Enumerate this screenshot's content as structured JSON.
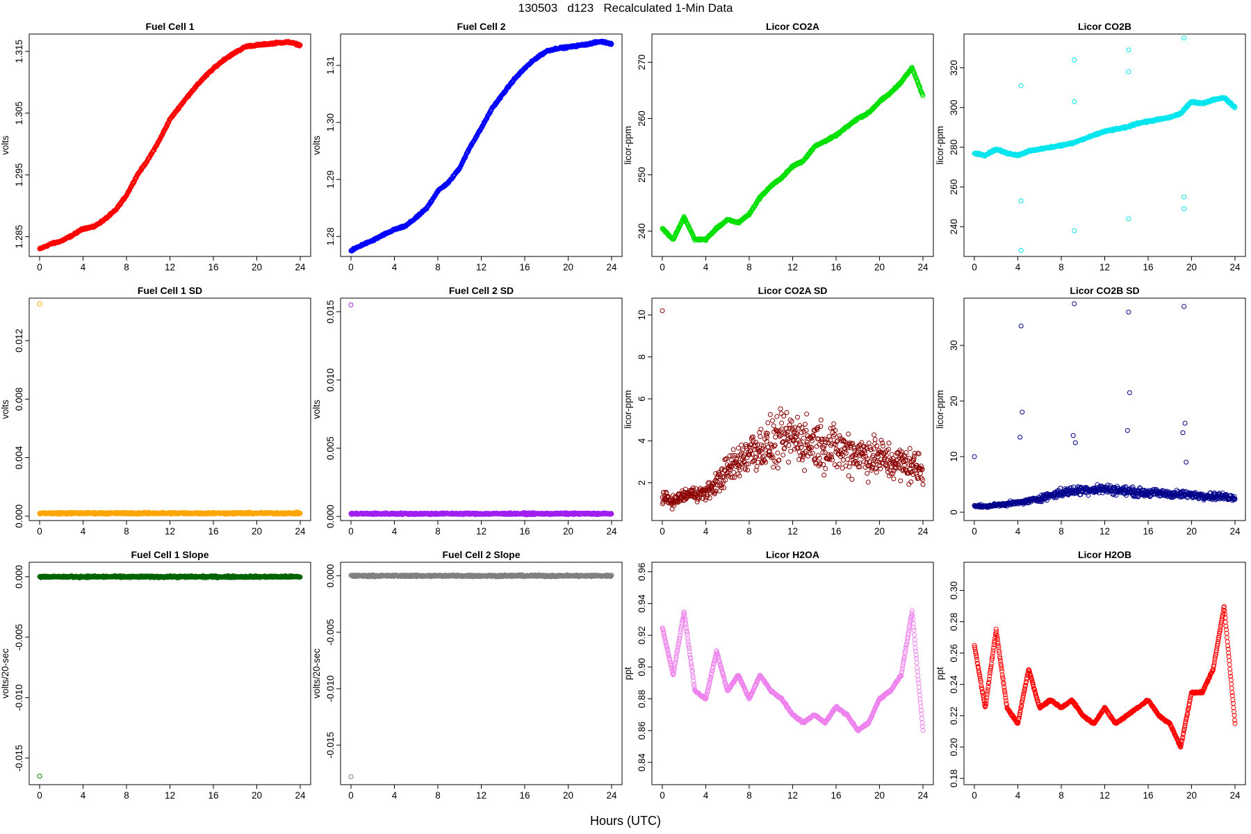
{
  "figure": {
    "title": "130503   d123   Recalculated 1-Min Data",
    "xlabel": "Hours (UTC)"
  },
  "chart_data": [
    {
      "type": "scatter",
      "title": "Fuel Cell 1",
      "ylabel": "volts",
      "color": "#ff0000",
      "xlim": [
        0,
        24
      ],
      "ylim": [
        1.2818,
        1.3178
      ],
      "xticks": [
        0,
        4,
        8,
        12,
        16,
        20,
        24
      ],
      "yticks": [
        1.285,
        1.295,
        1.305,
        1.315
      ],
      "ytick_labels": [
        "1.285",
        "1.295",
        "1.305",
        "1.315"
      ],
      "x": [
        0,
        1,
        2,
        3,
        4,
        5,
        6,
        7,
        8,
        9,
        10,
        11,
        12,
        13,
        14,
        15,
        16,
        17,
        18,
        19,
        20,
        21,
        22,
        23,
        24
      ],
      "values": [
        1.283,
        1.2838,
        1.2843,
        1.2852,
        1.2863,
        1.2866,
        1.2878,
        1.2893,
        1.2917,
        1.295,
        1.2975,
        1.3005,
        1.304,
        1.3063,
        1.3085,
        1.3105,
        1.3122,
        1.3137,
        1.3148,
        1.3158,
        1.316,
        1.3162,
        1.3164,
        1.3165,
        1.316
      ]
    },
    {
      "type": "scatter",
      "title": "Fuel Cell 2",
      "ylabel": "volts",
      "color": "#0000ff",
      "xlim": [
        0,
        24
      ],
      "ylim": [
        1.2765,
        1.3155
      ],
      "xticks": [
        0,
        4,
        8,
        12,
        16,
        20,
        24
      ],
      "yticks": [
        1.28,
        1.29,
        1.3,
        1.31
      ],
      "ytick_labels": [
        "1.28",
        "1.29",
        "1.30",
        "1.31"
      ],
      "x": [
        0,
        1,
        2,
        3,
        4,
        5,
        6,
        7,
        8,
        9,
        10,
        11,
        12,
        13,
        14,
        15,
        16,
        17,
        18,
        19,
        20,
        21,
        22,
        23,
        24
      ],
      "values": [
        1.2775,
        1.2785,
        1.2793,
        1.2803,
        1.2812,
        1.2818,
        1.2833,
        1.285,
        1.288,
        1.2895,
        1.292,
        1.2958,
        1.299,
        1.3025,
        1.305,
        1.3075,
        1.3095,
        1.3112,
        1.3125,
        1.313,
        1.3132,
        1.3135,
        1.3138,
        1.3142,
        1.3138
      ]
    },
    {
      "type": "scatter",
      "title": "Licor CO2A",
      "ylabel": "licor-ppm",
      "color": "#00e000",
      "xlim": [
        0,
        24
      ],
      "ylim": [
        235.5,
        275
      ],
      "xticks": [
        0,
        4,
        8,
        12,
        16,
        20,
        24
      ],
      "yticks": [
        240,
        250,
        260,
        270
      ],
      "ytick_labels": [
        "240",
        "250",
        "260",
        "270"
      ],
      "x": [
        0,
        1,
        2,
        3,
        4,
        5,
        6,
        7,
        8,
        9,
        10,
        11,
        12,
        13,
        14,
        15,
        16,
        17,
        18,
        19,
        20,
        21,
        22,
        23,
        24
      ],
      "values": [
        240.5,
        238.5,
        242.5,
        238.5,
        238.5,
        240.5,
        242.0,
        241.5,
        243.0,
        246.0,
        248.0,
        249.5,
        251.5,
        252.5,
        255.0,
        256.0,
        257.0,
        258.5,
        260.0,
        261.0,
        263.0,
        264.5,
        266.5,
        269.0,
        264.0
      ]
    },
    {
      "type": "scatter",
      "title": "Licor CO2B",
      "ylabel": "licor-ppm",
      "color": "#00e5ee",
      "xlim": [
        0,
        24
      ],
      "ylim": [
        225,
        337
      ],
      "xticks": [
        0,
        4,
        8,
        12,
        16,
        20,
        24
      ],
      "yticks": [
        240,
        260,
        280,
        300,
        320
      ],
      "ytick_labels": [
        "240",
        "260",
        "280",
        "300",
        "320"
      ],
      "x": [
        0,
        1,
        2,
        3,
        4,
        5,
        6,
        7,
        8,
        9,
        10,
        11,
        12,
        13,
        14,
        15,
        16,
        17,
        18,
        19,
        20,
        21,
        22,
        23,
        24
      ],
      "values": [
        277,
        276,
        279,
        277,
        276,
        278,
        279,
        280,
        281,
        282,
        284,
        286,
        288,
        289,
        290,
        292,
        293,
        294,
        295,
        297,
        303,
        302,
        304,
        305,
        300
      ],
      "outliers_x": [
        4.3,
        4.3,
        4.3,
        9.2,
        9.2,
        9.2,
        14.2,
        14.2,
        14.2,
        19.3,
        19.3,
        19.3
      ],
      "outliers_y": [
        311,
        228,
        253,
        324,
        238,
        303,
        329,
        244,
        318,
        335,
        249,
        255
      ]
    },
    {
      "type": "scatter",
      "title": "Fuel Cell 1 SD",
      "ylabel": "volts",
      "color": "#ffa500",
      "xlim": [
        0,
        24
      ],
      "ylim": [
        -0.0003,
        0.0149
      ],
      "xticks": [
        0,
        4,
        8,
        12,
        16,
        20,
        24
      ],
      "yticks": [
        0,
        0.004,
        0.008,
        0.012
      ],
      "ytick_labels": [
        "0.000",
        "0.004",
        "0.008",
        "0.012"
      ],
      "x": [
        0,
        4,
        8,
        12,
        16,
        20,
        24
      ],
      "values": [
        0.0002,
        0.0002,
        0.0002,
        0.0002,
        0.0002,
        0.0002,
        0.0002
      ],
      "outliers_x": [
        0
      ],
      "outliers_y": [
        0.0145
      ]
    },
    {
      "type": "scatter",
      "title": "Fuel Cell 2 SD",
      "ylabel": "volts",
      "color": "#a020f0",
      "xlim": [
        0,
        24
      ],
      "ylim": [
        -0.0003,
        0.016
      ],
      "xticks": [
        0,
        4,
        8,
        12,
        16,
        20,
        24
      ],
      "yticks": [
        0,
        0.005,
        0.01,
        0.015
      ],
      "ytick_labels": [
        "0.000",
        "0.005",
        "0.010",
        "0.015"
      ],
      "x": [
        0,
        4,
        8,
        12,
        16,
        20,
        24
      ],
      "values": [
        0.0002,
        0.0002,
        0.0002,
        0.0002,
        0.0002,
        0.0002,
        0.0002
      ],
      "outliers_x": [
        0
      ],
      "outliers_y": [
        0.0155
      ]
    },
    {
      "type": "scatter",
      "title": "Licor CO2A SD",
      "ylabel": "licor-ppm",
      "color": "#8b0000",
      "xlim": [
        0,
        24
      ],
      "ylim": [
        0.2,
        10.8
      ],
      "xticks": [
        0,
        4,
        8,
        12,
        16,
        20,
        24
      ],
      "yticks": [
        2,
        4,
        6,
        8,
        10
      ],
      "ytick_labels": [
        "2",
        "4",
        "6",
        "8",
        "10"
      ],
      "x": [
        0,
        1,
        2,
        3,
        4,
        5,
        6,
        7,
        8,
        9,
        10,
        11,
        12,
        13,
        14,
        15,
        16,
        17,
        18,
        19,
        20,
        21,
        22,
        23,
        24
      ],
      "values": [
        1.3,
        1.1,
        1.4,
        1.5,
        1.5,
        2.0,
        2.6,
        3.0,
        3.5,
        3.7,
        3.8,
        4.0,
        4.2,
        4.0,
        3.9,
        3.8,
        3.6,
        3.5,
        3.4,
        3.3,
        3.2,
        3.0,
        2.9,
        2.8,
        2.6
      ],
      "spread": [
        0.4,
        0.4,
        0.5,
        0.5,
        0.5,
        0.8,
        1.0,
        1.2,
        1.5,
        1.6,
        1.7,
        1.8,
        1.8,
        1.8,
        1.7,
        1.7,
        1.6,
        1.6,
        1.5,
        1.5,
        1.4,
        1.3,
        1.3,
        1.2,
        1.2
      ],
      "outliers_x": [
        0
      ],
      "outliers_y": [
        10.2
      ]
    },
    {
      "type": "scatter",
      "title": "Licor CO2B SD",
      "ylabel": "licor-ppm",
      "color": "#00008b",
      "xlim": [
        0,
        24
      ],
      "ylim": [
        -1.5,
        38.5
      ],
      "xticks": [
        0,
        4,
        8,
        12,
        16,
        20,
        24
      ],
      "yticks": [
        0,
        10,
        20,
        30
      ],
      "ytick_labels": [
        "0",
        "10",
        "20",
        "30"
      ],
      "x": [
        0,
        1,
        2,
        3,
        4,
        5,
        6,
        7,
        8,
        9,
        10,
        11,
        12,
        13,
        14,
        15,
        16,
        17,
        18,
        19,
        20,
        21,
        22,
        23,
        24
      ],
      "values": [
        1.2,
        1.0,
        1.3,
        1.5,
        1.7,
        2.0,
        2.5,
        3.0,
        3.5,
        3.8,
        4.0,
        4.1,
        4.2,
        4.0,
        3.8,
        3.6,
        3.5,
        3.4,
        3.3,
        3.2,
        3.1,
        3.0,
        2.9,
        2.8,
        2.7
      ],
      "spread": [
        0.4,
        0.3,
        0.4,
        0.5,
        0.5,
        0.6,
        0.8,
        1.0,
        1.1,
        1.2,
        1.2,
        1.2,
        1.2,
        1.2,
        1.1,
        1.1,
        1.0,
        1.0,
        1.0,
        1.0,
        0.9,
        0.9,
        0.9,
        0.9,
        0.9
      ],
      "outliers_x": [
        0,
        4.3,
        4.4,
        4.2,
        9.2,
        9.3,
        9.1,
        14.2,
        14.3,
        14.1,
        19.3,
        19.4,
        19.2,
        19.5
      ],
      "outliers_y": [
        10,
        33.5,
        18,
        13.5,
        37.5,
        12.5,
        13.8,
        36,
        21.5,
        14.7,
        37,
        16,
        14.3,
        9
      ]
    },
    {
      "type": "scatter",
      "title": "Fuel Cell 1 Slope",
      "ylabel": "volts/20-sec",
      "color": "#006400",
      "xlim": [
        0,
        24
      ],
      "ylim": [
        -0.0172,
        0.0012
      ],
      "xticks": [
        0,
        4,
        8,
        12,
        16,
        20,
        24
      ],
      "yticks": [
        -0.015,
        -0.01,
        -0.005,
        0.0
      ],
      "ytick_labels": [
        "-0.015",
        "-0.010",
        "-0.005",
        "0.000"
      ],
      "x": [
        0,
        4,
        8,
        12,
        16,
        20,
        24
      ],
      "values": [
        0,
        0,
        0,
        0,
        0,
        0,
        0
      ],
      "outliers_x": [
        0
      ],
      "outliers_y": [
        -0.0165
      ]
    },
    {
      "type": "scatter",
      "title": "Fuel Cell 2 Slope",
      "ylabel": "volts/20-sec",
      "color": "#808080",
      "xlim": [
        0,
        24
      ],
      "ylim": [
        -0.0185,
        0.0012
      ],
      "xticks": [
        0,
        4,
        8,
        12,
        16,
        20,
        24
      ],
      "yticks": [
        -0.015,
        -0.01,
        -0.005,
        0.0
      ],
      "ytick_labels": [
        "-0.015",
        "-0.010",
        "-0.005",
        "0.000"
      ],
      "x": [
        0,
        4,
        8,
        12,
        16,
        20,
        24
      ],
      "values": [
        0,
        0,
        0,
        0,
        0,
        0,
        0
      ],
      "outliers_x": [
        0
      ],
      "outliers_y": [
        -0.0178
      ]
    },
    {
      "type": "scatter",
      "title": "Licor H2OA",
      "ylabel": "ppt",
      "color": "#ee82ee",
      "xlim": [
        0,
        24
      ],
      "ylim": [
        0.826,
        0.966
      ],
      "xticks": [
        0,
        4,
        8,
        12,
        16,
        20,
        24
      ],
      "yticks": [
        0.84,
        0.86,
        0.88,
        0.9,
        0.92,
        0.94,
        0.96
      ],
      "ytick_labels": [
        "0.84",
        "0.86",
        "0.88",
        "0.90",
        "0.92",
        "0.94",
        "0.96"
      ],
      "x": [
        0,
        1,
        2,
        3,
        4,
        5,
        6,
        7,
        8,
        9,
        10,
        11,
        12,
        13,
        14,
        15,
        16,
        17,
        18,
        19,
        20,
        21,
        22,
        23,
        24
      ],
      "values": [
        0.925,
        0.895,
        0.935,
        0.885,
        0.88,
        0.91,
        0.885,
        0.895,
        0.88,
        0.895,
        0.885,
        0.88,
        0.87,
        0.865,
        0.87,
        0.865,
        0.875,
        0.87,
        0.86,
        0.865,
        0.88,
        0.885,
        0.895,
        0.935,
        0.86
      ]
    },
    {
      "type": "scatter",
      "title": "Licor H2OB",
      "ylabel": "ppt",
      "color": "#ff0000",
      "xlim": [
        0,
        24
      ],
      "ylim": [
        0.176,
        0.318
      ],
      "xticks": [
        0,
        4,
        8,
        12,
        16,
        20,
        24
      ],
      "yticks": [
        0.18,
        0.2,
        0.22,
        0.24,
        0.26,
        0.28,
        0.3
      ],
      "ytick_labels": [
        "0.18",
        "0.20",
        "0.22",
        "0.24",
        "0.26",
        "0.28",
        "0.30"
      ],
      "x": [
        0,
        1,
        2,
        3,
        4,
        5,
        6,
        7,
        8,
        9,
        10,
        11,
        12,
        13,
        14,
        15,
        16,
        17,
        18,
        19,
        20,
        21,
        22,
        23,
        24
      ],
      "values": [
        0.265,
        0.225,
        0.275,
        0.225,
        0.215,
        0.25,
        0.225,
        0.23,
        0.225,
        0.23,
        0.22,
        0.215,
        0.225,
        0.215,
        0.22,
        0.225,
        0.23,
        0.22,
        0.215,
        0.2,
        0.235,
        0.235,
        0.25,
        0.29,
        0.215
      ]
    }
  ]
}
